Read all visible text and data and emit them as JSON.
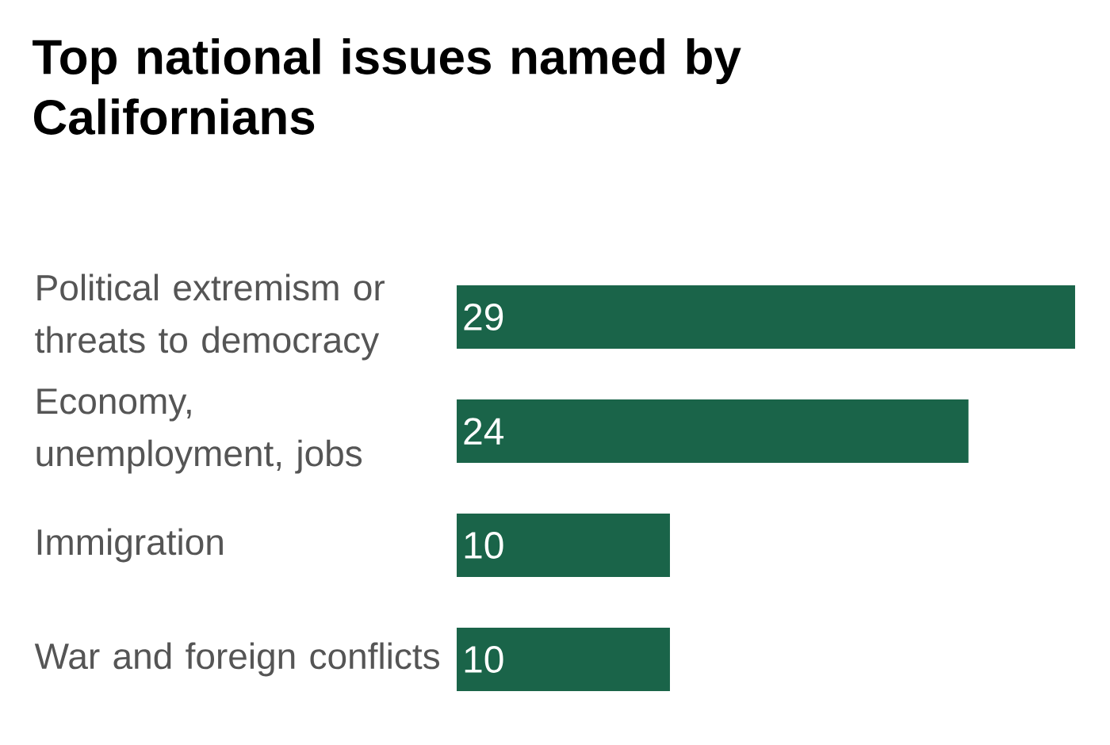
{
  "chart_data": {
    "type": "bar",
    "orientation": "horizontal",
    "title": "Top national issues named by Californians",
    "categories": [
      "Political extremism or threats to democracy",
      "Economy, unemployment, jobs",
      "Immigration",
      "War and foreign conflicts"
    ],
    "values": [
      29,
      24,
      10,
      10
    ],
    "color": "#1a6449",
    "data_labels": true
  }
}
